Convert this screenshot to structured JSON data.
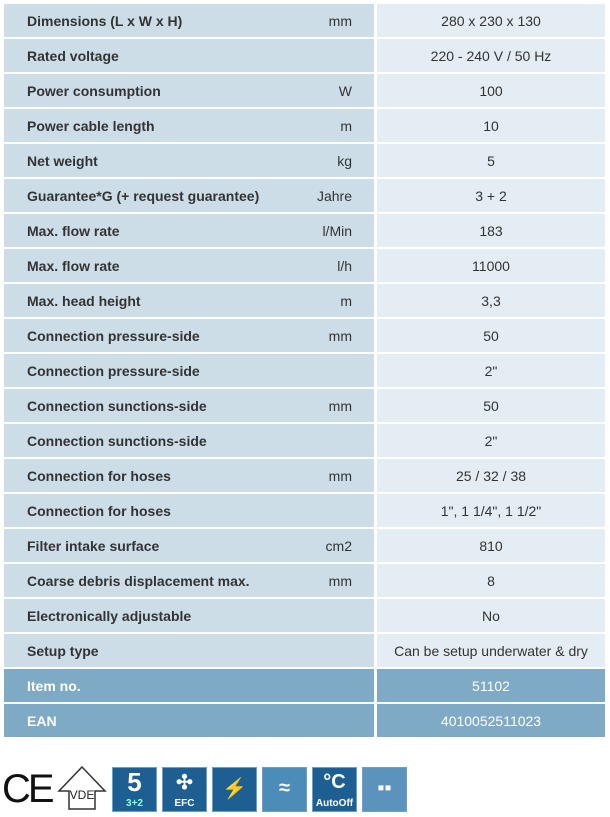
{
  "specs": [
    {
      "label": "Dimensions (L x W x H)",
      "unit": "mm",
      "value": "280 x 230 x 130"
    },
    {
      "label": "Rated voltage",
      "unit": "",
      "value": "220 - 240 V / 50 Hz"
    },
    {
      "label": "Power consumption",
      "unit": "W",
      "value": "100"
    },
    {
      "label": "Power cable length",
      "unit": "m",
      "value": "10"
    },
    {
      "label": "Net weight",
      "unit": "kg",
      "value": "5"
    },
    {
      "label": "Guarantee*G (+ request guarantee)",
      "unit": "Jahre",
      "value": "3 + 2"
    },
    {
      "label": "Max. flow rate",
      "unit": "l/Min",
      "value": "183"
    },
    {
      "label": "Max. flow rate",
      "unit": "l/h",
      "value": "11000"
    },
    {
      "label": "Max. head height",
      "unit": "m",
      "value": "3,3"
    },
    {
      "label": "Connection pressure-side",
      "unit": "mm",
      "value": "50"
    },
    {
      "label": "Connection pressure-side",
      "unit": "",
      "value": "2\""
    },
    {
      "label": "Connection sunctions-side",
      "unit": "mm",
      "value": "50"
    },
    {
      "label": "Connection sunctions-side",
      "unit": "",
      "value": "2\""
    },
    {
      "label": "Connection for hoses",
      "unit": "mm",
      "value": "25 / 32 / 38"
    },
    {
      "label": "Connection for hoses",
      "unit": "",
      "value": "1\", 1 1/4\", 1 1/2\""
    },
    {
      "label": "Filter intake surface",
      "unit": "cm2",
      "value": "810"
    },
    {
      "label": "Coarse debris displacement max.",
      "unit": "mm",
      "value": "8"
    },
    {
      "label": "Electronically adjustable",
      "unit": "",
      "value": "No"
    },
    {
      "label": "Setup type",
      "unit": "",
      "value": "Can be setup underwater & dry"
    }
  ],
  "ids": [
    {
      "label": "Item no.",
      "value": "51102"
    },
    {
      "label": "EAN",
      "value": "4010052511023"
    }
  ],
  "badges": {
    "ce": "CE",
    "vde": "VDE",
    "guarantee": "3+2",
    "efc": "EFC",
    "autooff": "AutoOff"
  },
  "colors": {
    "label_bg": "#cddde7",
    "value_bg": "#e4edf3",
    "highlight_bg": "#7eaac6",
    "icon_bg": "#1d5f93"
  }
}
